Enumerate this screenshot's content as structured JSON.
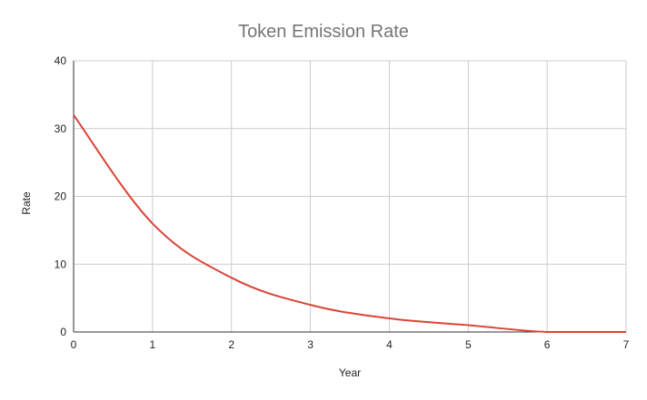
{
  "chart_data": {
    "type": "line",
    "title": "Token Emission Rate",
    "xlabel": "Year",
    "ylabel": "Rate",
    "xlim": [
      0,
      7
    ],
    "ylim": [
      0,
      40
    ],
    "xticks": [
      0,
      1,
      2,
      3,
      4,
      5,
      6,
      7
    ],
    "yticks": [
      0,
      10,
      20,
      30,
      40
    ],
    "grid": true,
    "series": [
      {
        "color": "#db4437",
        "x": [
          0,
          1,
          2,
          3,
          4,
          5,
          6,
          7
        ],
        "y": [
          32,
          16,
          8,
          4,
          2,
          1,
          0,
          0
        ]
      }
    ]
  }
}
